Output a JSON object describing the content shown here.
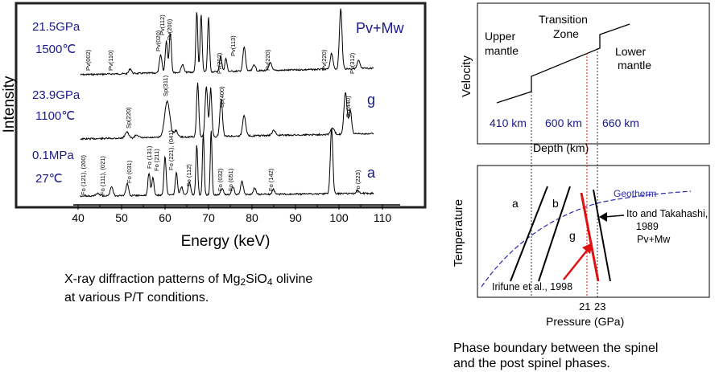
{
  "xrd": {
    "y_label": "Intensity",
    "x_label": "Energy (keV)",
    "x_ticks": [
      "40",
      "50",
      "60",
      "70",
      "80",
      "90",
      "100",
      "110"
    ],
    "patterns": [
      {
        "pressure": "21.5GPa",
        "temperature": "1500℃",
        "phase": "Pv+Mw",
        "peaks": [
          "Pv(002)",
          "Pv(110)",
          "Pv(020)",
          "Pv(112)",
          "Pv(200)",
          "Pv(202)",
          "Pv(113)",
          "Pv(220)",
          "Pv(220)",
          "Pv(312)"
        ]
      },
      {
        "pressure": "23.9GPa",
        "temperature": "1100℃",
        "phase": "g",
        "peaks": [
          "Sp(220)",
          "Sp(311)",
          "Sp(400)",
          "Sp(440)"
        ]
      },
      {
        "pressure": "0.1MPa",
        "temperature": "27℃",
        "phase": "a",
        "peaks": [
          "Fo (121), (200)",
          "Fo (111), (021)",
          "Fo (031)",
          "Fo (131)",
          "Fo (211)",
          "Fo (221), (041)",
          "Fo (112)",
          "Fo (032)",
          "Fo (051)",
          "Fo (142)",
          "Fo (223)"
        ]
      }
    ],
    "caption_pre": "X-ray diffraction patterns of Mg",
    "caption_sub1": "2",
    "caption_mid": "SiO",
    "caption_sub2": "4",
    "caption_post": " olivine",
    "caption_line2": "at various P/T conditions."
  },
  "velocity": {
    "y_label": "Velocity",
    "region_upper_1": "Upper",
    "region_upper_2": "mantle",
    "region_tz_1": "Transition",
    "region_tz_2": "Zone",
    "region_lower_1": "Lower",
    "region_lower_2": "mantle",
    "depths": [
      "410 km",
      "600 km",
      "660 km"
    ],
    "depth_label": "Depth (km)"
  },
  "phase": {
    "y_label": "Temperature",
    "x_label": "Pressure (GPa)",
    "x_ticks": [
      "21",
      "23"
    ],
    "phases": [
      "a",
      "b",
      "g"
    ],
    "geotherm_label": "Geotherm",
    "ref_ito_1": "Ito and Takahashi,",
    "ref_ito_2": "1989",
    "ref_ito_3": "Pv+Mw",
    "ref_irifune": "Irifune et al., 1998",
    "caption_line1": "Phase boundary between the spinel",
    "caption_line2": "and the post spinel phases."
  },
  "colors": {
    "label_blue": "#1a1a8c",
    "geotherm": "#2b2bb0",
    "boundary_red": "#e01010"
  }
}
